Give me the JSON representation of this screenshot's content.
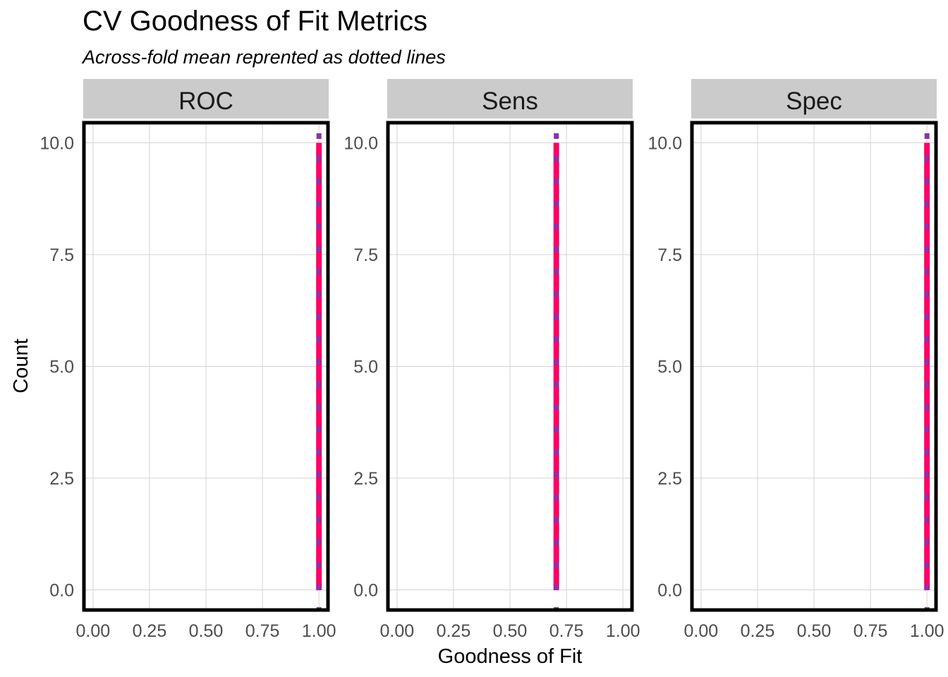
{
  "chart_data": {
    "type": "histogram",
    "title": "CV Goodness of Fit Metrics",
    "subtitle": "Across-fold mean reprented as dotted lines",
    "xlabel": "Goodness of Fit",
    "ylabel": "Count",
    "xlim": [
      -0.04,
      1.04
    ],
    "ylim": [
      -0.45,
      10.45
    ],
    "x_ticks": [
      "0.00",
      "0.25",
      "0.50",
      "0.75",
      "1.00"
    ],
    "x_tick_values": [
      0,
      0.25,
      0.5,
      0.75,
      1.0
    ],
    "y_ticks": [
      "0.0",
      "2.5",
      "5.0",
      "7.5",
      "10.0"
    ],
    "y_tick_values": [
      0,
      2.5,
      5,
      7.5,
      10
    ],
    "grid": true,
    "facets": [
      {
        "label": "ROC",
        "bins": [
          {
            "x": 1.0,
            "count": 10
          }
        ],
        "mean": 1.0
      },
      {
        "label": "Sens",
        "bins": [
          {
            "x": 0.705,
            "count": 10
          }
        ],
        "mean": 0.705
      },
      {
        "label": "Spec",
        "bins": [
          {
            "x": 1.0,
            "count": 10
          }
        ],
        "mean": 1.0
      }
    ],
    "colors": {
      "bar": "#FF0066",
      "mean_line": "#8E2FB0",
      "strip_fill": "#CBCBCB",
      "panel_border": "#000000",
      "grid": "#D3D3D3",
      "tick_text": "#4D4D4D"
    }
  }
}
